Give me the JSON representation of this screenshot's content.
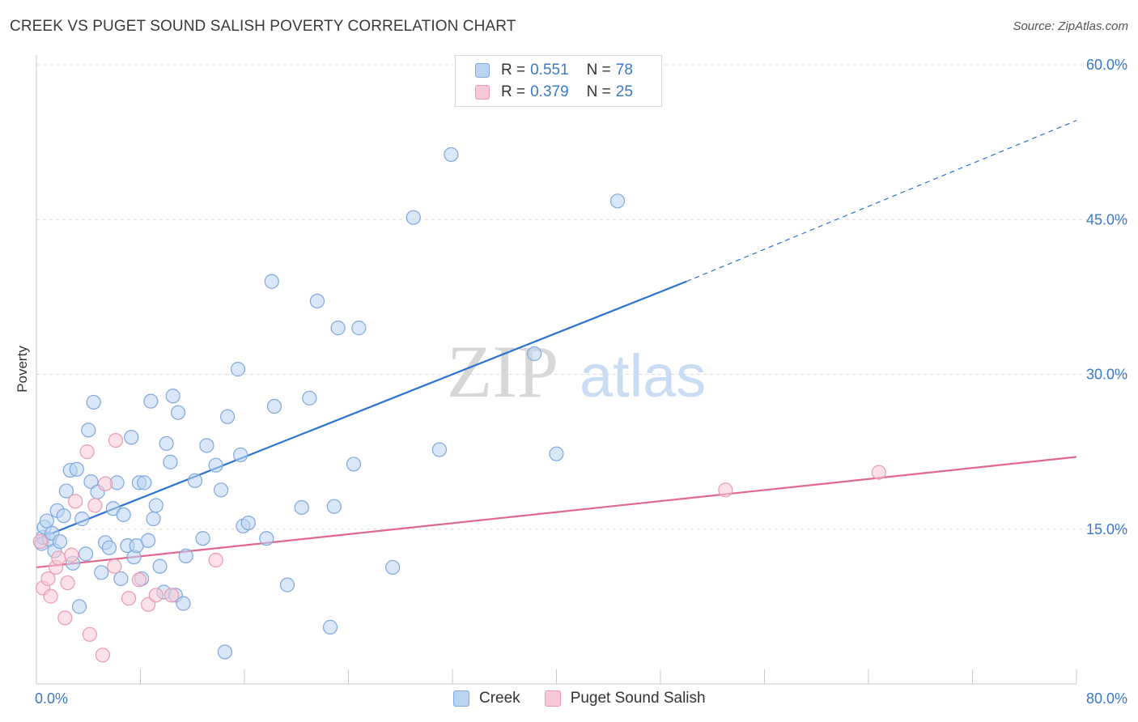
{
  "header": {
    "title": "CREEK VS PUGET SOUND SALISH POVERTY CORRELATION CHART",
    "source": "Source: ZipAtlas.com"
  },
  "legend": {
    "rows": [
      {
        "r_label": "R =",
        "r_value": "0.551",
        "n_label": "N =",
        "n_value": "78"
      },
      {
        "r_label": "R =",
        "r_value": "0.379",
        "n_label": "N =",
        "n_value": "25"
      }
    ]
  },
  "bottom_legend": {
    "items": [
      "Creek",
      "Puget Sound Salish"
    ]
  },
  "watermark": {
    "zip": "ZIP",
    "atlas": "atlas"
  },
  "colors": {
    "creek_fill": "#b9d3f3",
    "creek_stroke": "#7fa8dc",
    "creek_line": "#2a72d0",
    "salish_fill": "#f9c8d6",
    "salish_stroke": "#eb9ab4",
    "salish_line": "#e2678f",
    "tick_text": "#3a78c9",
    "grid": "#dcdcdc"
  },
  "chart_data": {
    "type": "scatter",
    "title": "CREEK VS PUGET SOUND SALISH POVERTY CORRELATION CHART",
    "xlabel": "",
    "ylabel": "Poverty",
    "xlim": [
      0,
      80
    ],
    "ylim": [
      0,
      60
    ],
    "x_tick_labels": [
      "0.0%",
      "80.0%"
    ],
    "y_ticks": [
      15,
      30,
      45,
      60
    ],
    "y_tick_labels": [
      "15.0%",
      "30.0%",
      "45.0%",
      "60.0%"
    ],
    "grid": true,
    "legend_position": "top-center",
    "series": [
      {
        "name": "Creek",
        "r": 0.551,
        "n": 78,
        "trend": {
          "x0": 0,
          "y0": 14.0,
          "x1": 50,
          "y1": 39.0,
          "dashed_to_x": 80,
          "dashed_to_y": 54.6
        },
        "points": [
          [
            0.4,
            13.6
          ],
          [
            0.5,
            14.2
          ],
          [
            0.6,
            15.2
          ],
          [
            0.8,
            15.8
          ],
          [
            1.0,
            14.0
          ],
          [
            1.2,
            14.6
          ],
          [
            1.4,
            12.9
          ],
          [
            1.6,
            16.8
          ],
          [
            1.8,
            13.8
          ],
          [
            2.1,
            16.3
          ],
          [
            2.3,
            18.7
          ],
          [
            2.6,
            20.7
          ],
          [
            2.8,
            11.7
          ],
          [
            3.1,
            20.8
          ],
          [
            3.3,
            7.5
          ],
          [
            3.5,
            16.0
          ],
          [
            3.8,
            12.6
          ],
          [
            4.0,
            24.6
          ],
          [
            4.2,
            19.6
          ],
          [
            4.4,
            27.3
          ],
          [
            4.7,
            18.6
          ],
          [
            5.0,
            10.8
          ],
          [
            5.3,
            13.7
          ],
          [
            5.6,
            13.2
          ],
          [
            5.9,
            17.0
          ],
          [
            6.2,
            19.5
          ],
          [
            6.5,
            10.2
          ],
          [
            6.7,
            16.4
          ],
          [
            7.0,
            13.4
          ],
          [
            7.3,
            23.9
          ],
          [
            7.5,
            12.3
          ],
          [
            7.7,
            13.4
          ],
          [
            7.9,
            19.5
          ],
          [
            8.1,
            10.2
          ],
          [
            8.3,
            19.5
          ],
          [
            8.6,
            13.9
          ],
          [
            8.8,
            27.4
          ],
          [
            9.0,
            16.0
          ],
          [
            9.2,
            17.3
          ],
          [
            9.5,
            11.4
          ],
          [
            9.8,
            8.9
          ],
          [
            10.0,
            23.3
          ],
          [
            10.3,
            21.5
          ],
          [
            10.5,
            27.9
          ],
          [
            10.7,
            8.6
          ],
          [
            10.9,
            26.3
          ],
          [
            11.3,
            7.8
          ],
          [
            11.5,
            12.4
          ],
          [
            12.2,
            19.7
          ],
          [
            12.8,
            14.1
          ],
          [
            13.1,
            23.1
          ],
          [
            13.8,
            21.2
          ],
          [
            14.2,
            18.8
          ],
          [
            14.5,
            3.1
          ],
          [
            14.7,
            25.9
          ],
          [
            15.5,
            30.5
          ],
          [
            15.7,
            22.2
          ],
          [
            15.9,
            15.3
          ],
          [
            16.3,
            15.6
          ],
          [
            17.7,
            14.1
          ],
          [
            18.1,
            39.0
          ],
          [
            18.3,
            26.9
          ],
          [
            19.3,
            9.6
          ],
          [
            20.4,
            17.1
          ],
          [
            21.0,
            27.7
          ],
          [
            21.6,
            37.1
          ],
          [
            22.6,
            5.5
          ],
          [
            22.9,
            17.2
          ],
          [
            23.2,
            34.5
          ],
          [
            24.4,
            21.3
          ],
          [
            24.8,
            34.5
          ],
          [
            27.4,
            11.3
          ],
          [
            29.0,
            45.2
          ],
          [
            31.0,
            22.7
          ],
          [
            31.9,
            51.3
          ],
          [
            38.3,
            32.0
          ],
          [
            40.0,
            22.3
          ],
          [
            44.7,
            46.8
          ]
        ]
      },
      {
        "name": "Puget Sound Salish",
        "r": 0.379,
        "n": 25,
        "trend": {
          "x0": 0,
          "y0": 11.3,
          "x1": 80,
          "y1": 22.0
        },
        "points": [
          [
            0.3,
            13.8
          ],
          [
            0.5,
            9.3
          ],
          [
            0.9,
            10.2
          ],
          [
            1.1,
            8.5
          ],
          [
            1.5,
            11.3
          ],
          [
            1.7,
            12.2
          ],
          [
            2.2,
            6.4
          ],
          [
            2.4,
            9.8
          ],
          [
            2.7,
            12.5
          ],
          [
            3.0,
            17.7
          ],
          [
            3.9,
            22.5
          ],
          [
            4.1,
            4.8
          ],
          [
            4.5,
            17.3
          ],
          [
            5.1,
            2.8
          ],
          [
            5.3,
            19.4
          ],
          [
            6.0,
            11.4
          ],
          [
            6.1,
            23.6
          ],
          [
            7.1,
            8.3
          ],
          [
            7.9,
            10.1
          ],
          [
            8.6,
            7.7
          ],
          [
            9.2,
            8.6
          ],
          [
            10.4,
            8.6
          ],
          [
            13.8,
            12.0
          ],
          [
            53.0,
            18.8
          ],
          [
            64.8,
            20.5
          ]
        ]
      }
    ]
  }
}
